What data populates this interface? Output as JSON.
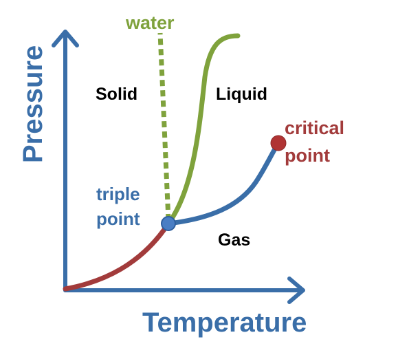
{
  "axes": {
    "x_label": "Temperature",
    "y_label": "Pressure"
  },
  "regions": {
    "solid": "Solid",
    "liquid": "Liquid",
    "gas": "Gas"
  },
  "annotations": {
    "water": "water",
    "triple_point_line1": "triple",
    "triple_point_line2": "point",
    "critical_point_line1": "critical",
    "critical_point_line2": "point"
  },
  "colors": {
    "axis": "#3a6ea8",
    "sublimation_curve": "#a23b3b",
    "melting_curve": "#7fa23c",
    "boiling_curve": "#3a6ea8",
    "water_melting_curve": "#7fa23c",
    "triple_point_marker": "#4a7ec4",
    "critical_point_marker": "#b03434",
    "region_text": "#000000"
  }
}
